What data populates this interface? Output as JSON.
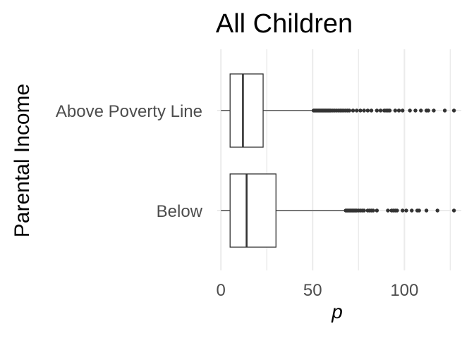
{
  "chart_data": {
    "type": "boxplot",
    "orientation": "horizontal",
    "title": "All Children",
    "xlabel": "p",
    "ylabel": "Parental Income",
    "xlim": [
      -2,
      131
    ],
    "xticks": [
      0,
      50,
      100
    ],
    "xtick_labels": [
      "0",
      "50",
      "100"
    ],
    "grid": "vertical",
    "categories": [
      "Above Poverty Line",
      "Below"
    ],
    "boxes": [
      {
        "category": "Above Poverty Line",
        "whisker_low": 0,
        "q1": 5,
        "median": 12,
        "q3": 23,
        "whisker_high": 50,
        "outliers": [
          50.5,
          51,
          51.5,
          52,
          52.5,
          53,
          53.5,
          54,
          54.5,
          55,
          55.5,
          56,
          56.5,
          57,
          57.5,
          58,
          58.5,
          59,
          59.5,
          60,
          61,
          62,
          63,
          64,
          65,
          66,
          67,
          68,
          69,
          70,
          72,
          74,
          76,
          78,
          80,
          82,
          85,
          87,
          89,
          90,
          91,
          92,
          95,
          97,
          99,
          103,
          106,
          109,
          112,
          113,
          116,
          122,
          127
        ]
      },
      {
        "category": "Below",
        "whisker_low": 0,
        "q1": 5,
        "median": 14,
        "q3": 30,
        "whisker_high": 67,
        "outliers": [
          68,
          68.5,
          69,
          69.5,
          70,
          70.5,
          71,
          71.5,
          72,
          72.5,
          73,
          73.5,
          74,
          75,
          76,
          77,
          78,
          80,
          81,
          82,
          83,
          85,
          91,
          93,
          94,
          95,
          96,
          99,
          101,
          104,
          107,
          108,
          112,
          118,
          127
        ]
      }
    ]
  }
}
